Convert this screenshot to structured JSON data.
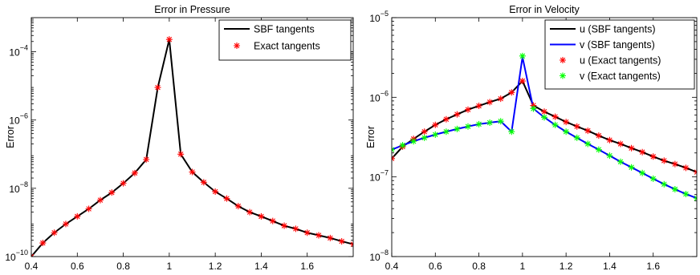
{
  "chart_data": [
    {
      "type": "line",
      "title": "Error in Pressure",
      "xlabel": "",
      "ylabel": "Error",
      "yscale": "log",
      "xlim": [
        0.4,
        1.8
      ],
      "ylim": [
        1e-10,
        0.001
      ],
      "xticks": [
        0.4,
        0.6,
        0.8,
        1,
        1.2,
        1.4,
        1.6
      ],
      "xtick_labels": [
        "0.4",
        "0.6",
        "0.8",
        "1",
        "1.2",
        "1.4",
        "1.6"
      ],
      "yticks": [
        1e-10,
        1e-08,
        1e-06,
        0.0001
      ],
      "ytick_labels": [
        [
          "10",
          "−10"
        ],
        [
          "10",
          "−8"
        ],
        [
          "10",
          "−6"
        ],
        [
          "10",
          "−4"
        ]
      ],
      "legend_position": "top-right",
      "legend": [
        {
          "label": "SBF tangents",
          "style": "line",
          "color": "#000000"
        },
        {
          "label": "Exact tangents",
          "style": "star",
          "color": "#ff0000"
        }
      ],
      "series": [
        {
          "name": "SBF tangents",
          "style": "line",
          "color": "#000000",
          "x": [
            0.4,
            0.45,
            0.5,
            0.55,
            0.6,
            0.65,
            0.7,
            0.75,
            0.8,
            0.85,
            0.9,
            0.95,
            1.0,
            1.05,
            1.1,
            1.15,
            1.2,
            1.25,
            1.3,
            1.35,
            1.4,
            1.45,
            1.5,
            1.55,
            1.6,
            1.65,
            1.7,
            1.75,
            1.8
          ],
          "y": [
            1e-10,
            2.5e-10,
            5e-10,
            9e-10,
            1.5e-09,
            2.5e-09,
            4.5e-09,
            7.5e-09,
            1.4e-08,
            2.8e-08,
            7e-08,
            9e-06,
            0.00023,
            1e-07,
            3e-08,
            1.5e-08,
            8e-09,
            5e-09,
            3e-09,
            2e-09,
            1.5e-09,
            1.1e-09,
            8e-10,
            6.5e-10,
            5e-10,
            4.2e-10,
            3.5e-10,
            2.8e-10,
            2.3e-10
          ]
        },
        {
          "name": "Exact tangents",
          "style": "star",
          "color": "#ff0000",
          "x": [
            0.4,
            0.45,
            0.5,
            0.55,
            0.6,
            0.65,
            0.7,
            0.75,
            0.8,
            0.85,
            0.9,
            0.95,
            1.0,
            1.05,
            1.1,
            1.15,
            1.2,
            1.25,
            1.3,
            1.35,
            1.4,
            1.45,
            1.5,
            1.55,
            1.6,
            1.65,
            1.7,
            1.75,
            1.8
          ],
          "y": [
            1e-10,
            2.5e-10,
            5e-10,
            9e-10,
            1.5e-09,
            2.5e-09,
            4.5e-09,
            7.5e-09,
            1.4e-08,
            2.8e-08,
            7e-08,
            9e-06,
            0.00023,
            1e-07,
            3e-08,
            1.5e-08,
            8e-09,
            5e-09,
            3e-09,
            2e-09,
            1.5e-09,
            1.1e-09,
            8e-10,
            6.5e-10,
            5e-10,
            4.2e-10,
            3.5e-10,
            2.8e-10,
            2.3e-10
          ]
        }
      ]
    },
    {
      "type": "line",
      "title": "Error in Velocity",
      "xlabel": "",
      "ylabel": "Error",
      "yscale": "log",
      "xlim": [
        0.4,
        1.8
      ],
      "ylim": [
        1e-08,
        1e-05
      ],
      "xticks": [
        0.4,
        0.6,
        0.8,
        1,
        1.2,
        1.4,
        1.6
      ],
      "xtick_labels": [
        "0.4",
        "0.6",
        "0.8",
        "1",
        "1.2",
        "1.4",
        "1.6"
      ],
      "yticks": [
        1e-08,
        1e-07,
        1e-06,
        1e-05
      ],
      "ytick_labels": [
        [
          "10",
          "−8"
        ],
        [
          "10",
          "−7"
        ],
        [
          "10",
          "−6"
        ],
        [
          "10",
          "−5"
        ]
      ],
      "legend_position": "top-right",
      "legend": [
        {
          "label": "u (SBF tangents)",
          "style": "line",
          "color": "#000000"
        },
        {
          "label": "v (SBF tangents)",
          "style": "line",
          "color": "#0000ff"
        },
        {
          "label": "u (Exact tangents)",
          "style": "star",
          "color": "#ff0000"
        },
        {
          "label": "v (Exact tangents)",
          "style": "star",
          "color": "#00ff00"
        }
      ],
      "series": [
        {
          "name": "u (SBF tangents)",
          "style": "line",
          "color": "#000000",
          "x": [
            0.4,
            0.45,
            0.5,
            0.55,
            0.6,
            0.65,
            0.7,
            0.75,
            0.8,
            0.85,
            0.9,
            0.95,
            1.0,
            1.05,
            1.1,
            1.15,
            1.2,
            1.25,
            1.3,
            1.35,
            1.4,
            1.45,
            1.5,
            1.55,
            1.6,
            1.65,
            1.7,
            1.75,
            1.8
          ],
          "y": [
            1.7e-07,
            2.4e-07,
            3e-07,
            3.7e-07,
            4.5e-07,
            5.3e-07,
            6.1e-07,
            7e-07,
            7.8e-07,
            8.7e-07,
            9.6e-07,
            1.15e-06,
            1.6e-06,
            7.9e-07,
            6.6e-07,
            5.7e-07,
            4.9e-07,
            4.3e-07,
            3.8e-07,
            3.3e-07,
            2.9e-07,
            2.6e-07,
            2.3e-07,
            2.05e-07,
            1.8e-07,
            1.6e-07,
            1.45e-07,
            1.3e-07,
            1.15e-07
          ]
        },
        {
          "name": "v (SBF tangents)",
          "style": "line",
          "color": "#0000ff",
          "x": [
            0.4,
            0.45,
            0.5,
            0.55,
            0.6,
            0.65,
            0.7,
            0.75,
            0.8,
            0.85,
            0.9,
            0.95,
            1.0,
            1.05,
            1.1,
            1.15,
            1.2,
            1.25,
            1.3,
            1.35,
            1.4,
            1.45,
            1.5,
            1.55,
            1.6,
            1.65,
            1.7,
            1.75,
            1.8
          ],
          "y": [
            2.2e-07,
            2.5e-07,
            2.8e-07,
            3.1e-07,
            3.4e-07,
            3.7e-07,
            4e-07,
            4.3e-07,
            4.6e-07,
            4.8e-07,
            5e-07,
            3.7e-07,
            3.2e-06,
            7.2e-07,
            5.6e-07,
            4.5e-07,
            3.7e-07,
            3.1e-07,
            2.6e-07,
            2.2e-07,
            1.85e-07,
            1.55e-07,
            1.32e-07,
            1.12e-07,
            9.5e-08,
            8.1e-08,
            7e-08,
            6.1e-08,
            5.4e-08
          ]
        },
        {
          "name": "u (Exact tangents)",
          "style": "star",
          "color": "#ff0000",
          "x": [
            0.4,
            0.45,
            0.5,
            0.55,
            0.6,
            0.65,
            0.7,
            0.75,
            0.8,
            0.85,
            0.9,
            0.95,
            1.0,
            1.05,
            1.1,
            1.15,
            1.2,
            1.25,
            1.3,
            1.35,
            1.4,
            1.45,
            1.5,
            1.55,
            1.6,
            1.65,
            1.7,
            1.75,
            1.8
          ],
          "y": [
            1.7e-07,
            2.4e-07,
            3e-07,
            3.7e-07,
            4.5e-07,
            5.3e-07,
            6.1e-07,
            7e-07,
            7.8e-07,
            8.7e-07,
            9.6e-07,
            1.15e-06,
            1.6e-06,
            7.9e-07,
            6.6e-07,
            5.7e-07,
            4.9e-07,
            4.3e-07,
            3.8e-07,
            3.3e-07,
            2.9e-07,
            2.6e-07,
            2.3e-07,
            2.05e-07,
            1.8e-07,
            1.6e-07,
            1.45e-07,
            1.3e-07,
            1.15e-07
          ]
        },
        {
          "name": "v (Exact tangents)",
          "style": "star",
          "color": "#00ff00",
          "x": [
            0.4,
            0.45,
            0.5,
            0.55,
            0.6,
            0.65,
            0.7,
            0.75,
            0.8,
            0.85,
            0.9,
            0.95,
            1.0,
            1.05,
            1.1,
            1.15,
            1.2,
            1.25,
            1.3,
            1.35,
            1.4,
            1.45,
            1.5,
            1.55,
            1.6,
            1.65,
            1.7,
            1.75,
            1.8
          ],
          "y": [
            2.2e-07,
            2.5e-07,
            2.8e-07,
            3.1e-07,
            3.4e-07,
            3.7e-07,
            4e-07,
            4.3e-07,
            4.6e-07,
            4.8e-07,
            5e-07,
            3.7e-07,
            3.3e-06,
            7.2e-07,
            5.6e-07,
            4.5e-07,
            3.7e-07,
            3.1e-07,
            2.6e-07,
            2.2e-07,
            1.85e-07,
            1.55e-07,
            1.32e-07,
            1.12e-07,
            9.5e-08,
            8.1e-08,
            7e-08,
            6.1e-08,
            5.4e-08
          ]
        }
      ]
    }
  ]
}
